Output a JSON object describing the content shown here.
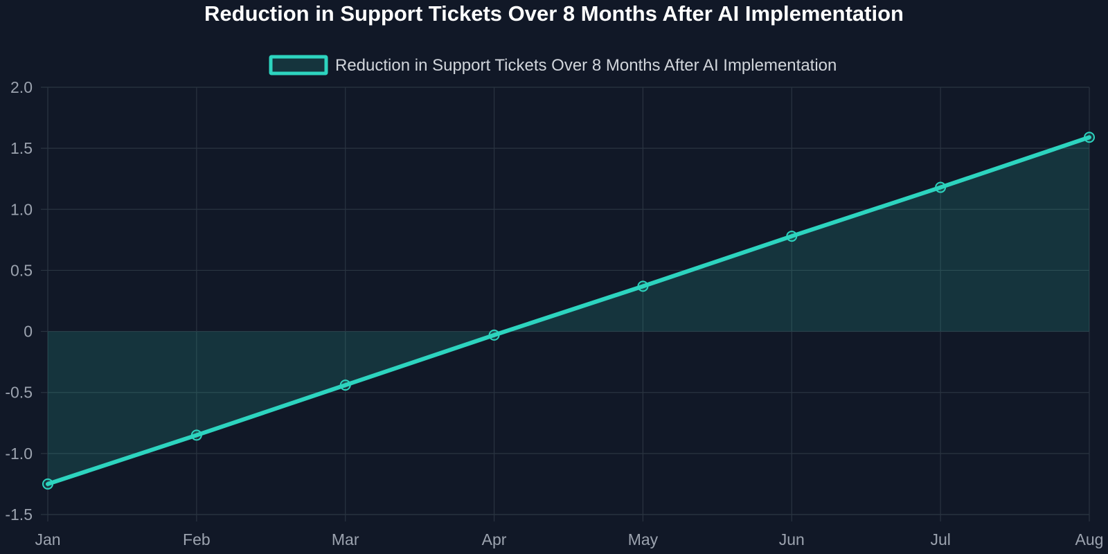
{
  "chart_data": {
    "type": "line",
    "title": "Reduction in Support Tickets Over 8 Months After AI Implementation",
    "xlabel": "",
    "ylabel": "",
    "categories": [
      "Jan",
      "Feb",
      "Mar",
      "Apr",
      "May",
      "Jun",
      "Jul",
      "Aug"
    ],
    "series": [
      {
        "name": "Reduction in Support Tickets Over 8 Months After AI Implementation",
        "values": [
          -1.25,
          -0.85,
          -0.44,
          -0.03,
          0.37,
          0.78,
          1.18,
          1.59
        ],
        "color": "#2dd4bf",
        "fill": "rgba(45, 212, 191, 0.15)"
      }
    ],
    "ylim": [
      -1.5,
      2.0
    ],
    "yticks": [
      -1.5,
      -1.0,
      -0.5,
      0,
      0.5,
      1.0,
      1.5,
      2.0
    ],
    "ytick_labels": [
      "-1.5",
      "-1.0",
      "-0.5",
      "0",
      "0.5",
      "1.0",
      "1.5",
      "2.0"
    ],
    "grid": true,
    "legend_position": "top-center",
    "fill_to_zero": true,
    "colors": {
      "background": "#111827",
      "grid": "#2a3441",
      "tick_text": "#9ca3af",
      "legend_text": "#d1d5db",
      "title_text": "#ffffff"
    }
  }
}
